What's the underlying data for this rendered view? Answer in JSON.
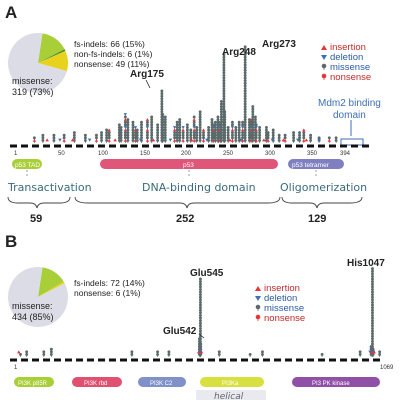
{
  "colors": {
    "missense": "#5a6a6a",
    "insertion": "#e8333a",
    "deletion": "#3d6fb6",
    "nonsense": "#e8333a",
    "pie_missense": "#dcdce6",
    "pie_fs": "#a9cf38",
    "pie_nonfs": "#4c8a2a",
    "pie_nonsense": "#e8d21e",
    "p53_tad": "#a9cf38",
    "p53_dbd": "#e0557a",
    "p53_tet": "#8080c0",
    "pik_p85": "#a9cf38",
    "pik_rbd": "#e05070",
    "pik_c2": "#8090c8",
    "pik_helical": "#d8e040",
    "pik_kinase": "#9050a8",
    "annotation_blue": "#3d6fb6",
    "region_text": "#3a6a7a"
  },
  "legend": {
    "insertion": "insertion",
    "deletion": "deletion",
    "missense": "missense",
    "nonsense": "nonsense"
  },
  "panelA": {
    "label": "A",
    "pie": {
      "fs_indels": "fs-indels: 66 (15%)",
      "non_fs_indels": "non-fs-indels: 6 (1%)",
      "nonsense": "nonsense: 49 (11%)",
      "missense_line1": "missense:",
      "missense_line2": "319 (73%)",
      "fractions": {
        "missense": 0.73,
        "fs_indels": 0.15,
        "non_fs_indels": 0.01,
        "nonsense": 0.11
      }
    },
    "hotspots": [
      "Arg175",
      "Arg248",
      "Arg273"
    ],
    "mdm2_line1": "Mdm2 binding",
    "mdm2_line2": "domain",
    "ticks": [
      "1",
      "50",
      "100",
      "150",
      "200",
      "250",
      "300",
      "350",
      "394"
    ],
    "domains": [
      "p53 TAD",
      "p53",
      "p53 tetramer"
    ],
    "regions": [
      "Transactivation",
      "DNA-binding domain",
      "Oligomerization"
    ],
    "lengths": [
      "59",
      "252",
      "129"
    ]
  },
  "panelB": {
    "label": "B",
    "pie": {
      "fs_indels": "fs-indels: 72 (14%)",
      "nonsense": "nonsense: 6 (1%)",
      "missense_line1": "missense:",
      "missense_line2": "434 (85%)",
      "fractions": {
        "missense": 0.85,
        "fs_indels": 0.14,
        "nonsense": 0.01
      }
    },
    "hotspots": [
      "Glu545",
      "Glu542",
      "His1047"
    ],
    "ticks": [
      "1",
      "1069"
    ],
    "domains": [
      "PI3K p85R",
      "PI3K rbd",
      "PI3K C2",
      "PI3Ka",
      "PI3 PK kinase"
    ],
    "helical": "helical"
  }
}
